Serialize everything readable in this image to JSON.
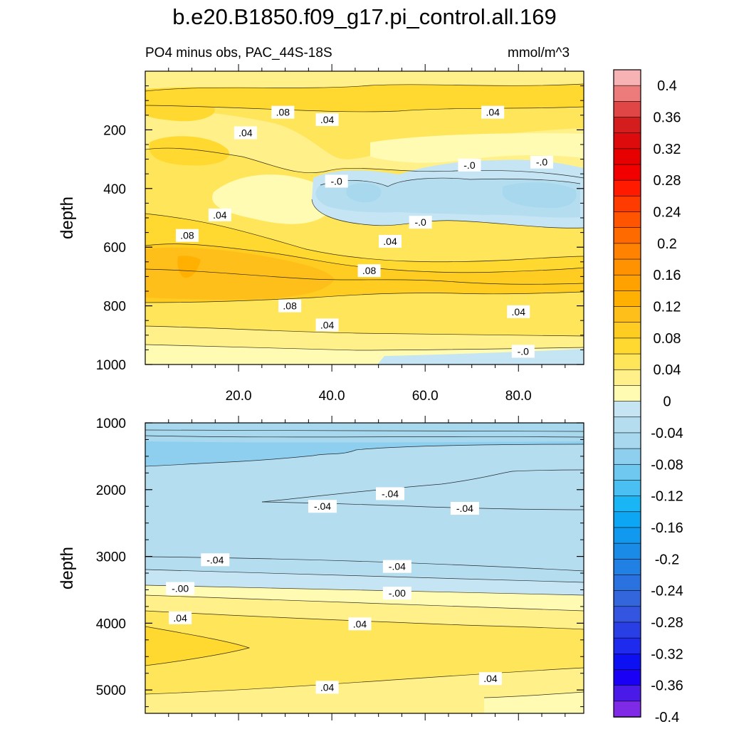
{
  "title": "b.e20.B1850.f09_g17.pi_control.all.169",
  "subtitle_left": "PO4 minus obs, PAC_44S-18S",
  "subtitle_right": "mmol/m^3",
  "chart_data": [
    {
      "type": "contour",
      "panel": "upper",
      "ylabel": "depth",
      "ylim": [
        1000,
        0
      ],
      "xlim": [
        0,
        94
      ],
      "yticks": [
        "200",
        "400",
        "600",
        "800",
        "1000"
      ],
      "yticks_values": [
        200,
        400,
        600,
        800,
        1000
      ],
      "xticks": [
        "20.0",
        "40.0",
        "60.0",
        "80.0"
      ],
      "xticks_values": [
        20,
        40,
        60,
        80
      ],
      "contour_labels": [
        {
          "text": ".08",
          "x": 29.5,
          "y": 140
        },
        {
          "text": ".04",
          "x": 21.5,
          "y": 210
        },
        {
          "text": ".04",
          "x": 39,
          "y": 165
        },
        {
          "text": ".04",
          "x": 74.5,
          "y": 140
        },
        {
          "text": "-.0",
          "x": 41,
          "y": 375
        },
        {
          "text": "-.0",
          "x": 69.5,
          "y": 320
        },
        {
          "text": "-.0",
          "x": 85,
          "y": 310
        },
        {
          "text": ".04",
          "x": 16,
          "y": 490
        },
        {
          "text": "-.0",
          "x": 59,
          "y": 515
        },
        {
          "text": ".08",
          "x": 9,
          "y": 560
        },
        {
          "text": ".04",
          "x": 52.5,
          "y": 580
        },
        {
          "text": ".08",
          "x": 48,
          "y": 680
        },
        {
          "text": ".08",
          "x": 31,
          "y": 800
        },
        {
          "text": ".04",
          "x": 80,
          "y": 820
        },
        {
          "text": ".04",
          "x": 39,
          "y": 865
        },
        {
          "text": "-.0",
          "x": 81,
          "y": 955
        }
      ]
    },
    {
      "type": "contour",
      "panel": "lower",
      "ylabel": "depth",
      "ylim": [
        5350,
        1000
      ],
      "xlim": [
        0,
        94
      ],
      "yticks": [
        "1000",
        "2000",
        "3000",
        "4000",
        "5000"
      ],
      "yticks_values": [
        1000,
        2000,
        3000,
        4000,
        5000
      ],
      "contour_labels": [
        {
          "text": "-.04",
          "x": 52.5,
          "y": 2060
        },
        {
          "text": "-.04",
          "x": 38,
          "y": 2250
        },
        {
          "text": "-.04",
          "x": 68.5,
          "y": 2280
        },
        {
          "text": "-.04",
          "x": 15,
          "y": 3050
        },
        {
          "text": "-.04",
          "x": 54,
          "y": 3150
        },
        {
          "text": "-.00",
          "x": 7.5,
          "y": 3480
        },
        {
          "text": "-.00",
          "x": 54,
          "y": 3550
        },
        {
          "text": ".04",
          "x": 7.5,
          "y": 3920
        },
        {
          "text": ".04",
          "x": 46,
          "y": 4010
        },
        {
          "text": ".04",
          "x": 39,
          "y": 4960
        },
        {
          "text": ".04",
          "x": 74,
          "y": 4830
        }
      ]
    }
  ],
  "colorbar": {
    "labels": [
      "0.4",
      "0.36",
      "0.32",
      "0.28",
      "0.24",
      "0.2",
      "0.16",
      "0.12",
      "0.08",
      "0.04",
      "0",
      "-0.04",
      "-0.08",
      "-0.12",
      "-0.16",
      "-0.2",
      "-0.24",
      "-0.28",
      "-0.32",
      "-0.36",
      "-0.4"
    ],
    "colors": [
      "#f7b3b3",
      "#ee7b7b",
      "#e04646",
      "#d41e1e",
      "#dd0b0b",
      "#e60000",
      "#f20000",
      "#ff1a00",
      "#ff3b00",
      "#ff5500",
      "#ff6a00",
      "#ff8200",
      "#ff9200",
      "#ffa200",
      "#ffb000",
      "#ffbf1b",
      "#ffcc22",
      "#ffd92f",
      "#ffe55a",
      "#fff08a",
      "#fffbb2",
      "#c6e5f4",
      "#b5ddf0",
      "#a8d8ee",
      "#8ecfef",
      "#6fc8f0",
      "#4abff2",
      "#1ab5f5",
      "#0ca6f5",
      "#1199f0",
      "#1a8ce8",
      "#2180e4",
      "#2a72e0",
      "#3366dd",
      "#3355e0",
      "#2a3ee6",
      "#1e2aee",
      "#0d10f2",
      "#1a00f5",
      "#4a1ae8",
      "#7e2ae6"
    ]
  }
}
